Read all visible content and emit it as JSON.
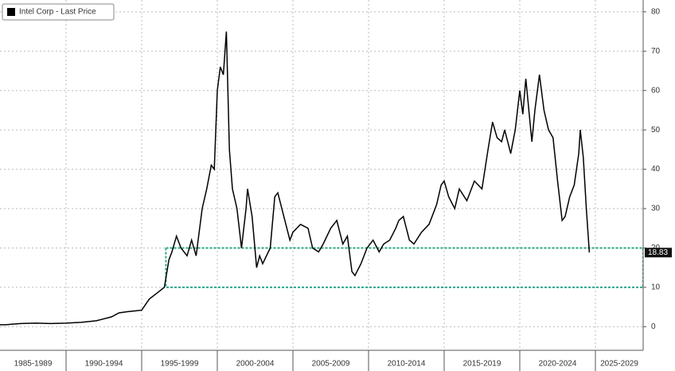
{
  "chart_data": {
    "type": "line",
    "series": [
      {
        "name": "Intel Corp - Last Price",
        "color": "#000000",
        "x": [
          1985.6,
          1986,
          1987,
          1988,
          1989,
          1990,
          1991,
          1992,
          1993,
          1993.5,
          1994,
          1994.5,
          1995,
          1995.5,
          1996,
          1996.5,
          1996.8,
          1997,
          1997.3,
          1997.6,
          1998,
          1998.3,
          1998.6,
          1999,
          1999.3,
          1999.6,
          1999.8,
          2000,
          2000.2,
          2000.4,
          2000.6,
          2000.8,
          2001,
          2001.3,
          2001.6,
          2001.9,
          2002,
          2002.3,
          2002.6,
          2002.8,
          2003,
          2003.5,
          2003.8,
          2004,
          2004.4,
          2004.8,
          2005,
          2005.5,
          2006,
          2006.3,
          2006.7,
          2007,
          2007.5,
          2007.9,
          2008.3,
          2008.6,
          2008.9,
          2009.1,
          2009.5,
          2009.9,
          2010.3,
          2010.7,
          2011,
          2011.4,
          2011.8,
          2012,
          2012.3,
          2012.7,
          2013,
          2013.5,
          2014,
          2014.5,
          2014.8,
          2015,
          2015.3,
          2015.7,
          2016,
          2016.5,
          2017,
          2017.5,
          2017.9,
          2018.2,
          2018.5,
          2018.8,
          2019,
          2019.4,
          2019.7,
          2020,
          2020.2,
          2020.4,
          2020.6,
          2020.8,
          2021,
          2021.3,
          2021.6,
          2021.9,
          2022.2,
          2022.5,
          2022.8,
          2023,
          2023.3,
          2023.6,
          2023.9,
          2024,
          2024.2,
          2024.4,
          2024.6
        ],
        "values": [
          0.5,
          0.5,
          0.8,
          0.9,
          0.8,
          0.9,
          1.1,
          1.5,
          2.5,
          3.5,
          3.8,
          4,
          4.2,
          7,
          8.5,
          10,
          17,
          19,
          23,
          20,
          18,
          22,
          18,
          30,
          35,
          41,
          40,
          60,
          66,
          64,
          75,
          45,
          35,
          30,
          20,
          30,
          35,
          28,
          15,
          18,
          16,
          20,
          33,
          34,
          28,
          22,
          24,
          26,
          25,
          20,
          19,
          21,
          25,
          27,
          21,
          23,
          14,
          13,
          16,
          20,
          22,
          19,
          21,
          22,
          25,
          27,
          28,
          22,
          21,
          24,
          26,
          31,
          36,
          37,
          33,
          30,
          35,
          32,
          37,
          35,
          45,
          52,
          48,
          47,
          50,
          44,
          50,
          60,
          54,
          63,
          55,
          47,
          55,
          64,
          55,
          50,
          48,
          37,
          27,
          28,
          33,
          36,
          44,
          50,
          43,
          30,
          18.83
        ],
        "last_label": "18.83"
      }
    ],
    "xlim": [
      1985,
      2030
    ],
    "xticks": [
      {
        "value": 1985,
        "label": "1985-1989"
      },
      {
        "value": 1990,
        "label": "1990-1994"
      },
      {
        "value": 1995,
        "label": "1995-1999"
      },
      {
        "value": 2000,
        "label": "2000-2004"
      },
      {
        "value": 2005,
        "label": "2005-2009"
      },
      {
        "value": 2010,
        "label": "2010-2014"
      },
      {
        "value": 2015,
        "label": "2015-2019"
      },
      {
        "value": 2020,
        "label": "2020-2024"
      },
      {
        "value": 2025,
        "label": "2025-2029"
      }
    ],
    "ylim": [
      -6,
      83
    ],
    "yticks": [
      0,
      10,
      20,
      30,
      40,
      50,
      60,
      70,
      80
    ],
    "grid": true,
    "highlight": {
      "x": [
        1996.6,
        2030
      ],
      "y": [
        10,
        20
      ],
      "color": "#2aa889"
    },
    "legend": "top-left"
  }
}
